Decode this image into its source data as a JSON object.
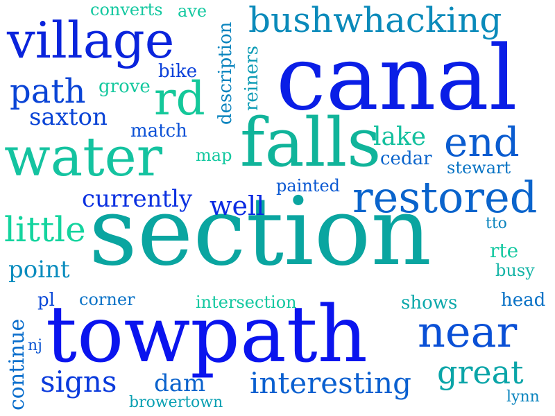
{
  "words": [
    {
      "text": "section",
      "color": "#0aa5a0"
    },
    {
      "text": "canal",
      "color": "#0a1ee6"
    },
    {
      "text": "towpath",
      "color": "#0a14ee"
    },
    {
      "text": "falls",
      "color": "#10b49a"
    },
    {
      "text": "water",
      "color": "#14c3a0"
    },
    {
      "text": "village",
      "color": "#0a24dc"
    },
    {
      "text": "restored",
      "color": "#0a64cc"
    },
    {
      "text": "near",
      "color": "#0a50d6"
    },
    {
      "text": "bushwhacking",
      "color": "#0a8aba"
    },
    {
      "text": "end",
      "color": "#0a5cd0"
    },
    {
      "text": "rd",
      "color": "#14c89a"
    },
    {
      "text": "path",
      "color": "#0a44d6"
    },
    {
      "text": "great",
      "color": "#0aa5a8"
    },
    {
      "text": "little",
      "color": "#14d49e"
    },
    {
      "text": "interesting",
      "color": "#0a60d0"
    },
    {
      "text": "signs",
      "color": "#0a3adc"
    },
    {
      "text": "well",
      "color": "#0a2ae2"
    },
    {
      "text": "currently",
      "color": "#0a30e0"
    },
    {
      "text": "point",
      "color": "#0a8cbe"
    },
    {
      "text": "saxton",
      "color": "#0a44d6"
    },
    {
      "text": "lake",
      "color": "#14c09e"
    },
    {
      "text": "dam",
      "color": "#0a62cc"
    },
    {
      "text": "continue",
      "color": "#0a6ecc"
    },
    {
      "text": "description",
      "color": "#0a84be"
    },
    {
      "text": "reiners",
      "color": "#0a9ab4"
    },
    {
      "text": "cedar",
      "color": "#0a64cc"
    },
    {
      "text": "stewart",
      "color": "#0a74c4"
    },
    {
      "text": "painted",
      "color": "#0a58d2"
    },
    {
      "text": "match",
      "color": "#0a50d6"
    },
    {
      "text": "grove",
      "color": "#14c89e"
    },
    {
      "text": "bike",
      "color": "#0a40da"
    },
    {
      "text": "converts",
      "color": "#14c8a0"
    },
    {
      "text": "ave",
      "color": "#14c8a0"
    },
    {
      "text": "map",
      "color": "#14c8a0"
    },
    {
      "text": "intersection",
      "color": "#14c8a0"
    },
    {
      "text": "shows",
      "color": "#0aa8aa"
    },
    {
      "text": "corner",
      "color": "#0a72c6"
    },
    {
      "text": "head",
      "color": "#0a72c6"
    },
    {
      "text": "rte",
      "color": "#14c8a0"
    },
    {
      "text": "busy",
      "color": "#14b4a6"
    },
    {
      "text": "tto",
      "color": "#0a84be"
    },
    {
      "text": "pl",
      "color": "#0a48d8"
    },
    {
      "text": "nj",
      "color": "#0a54d2"
    },
    {
      "text": "browertown",
      "color": "#0aa0b2"
    },
    {
      "text": "lynn",
      "color": "#0a84be"
    }
  ]
}
